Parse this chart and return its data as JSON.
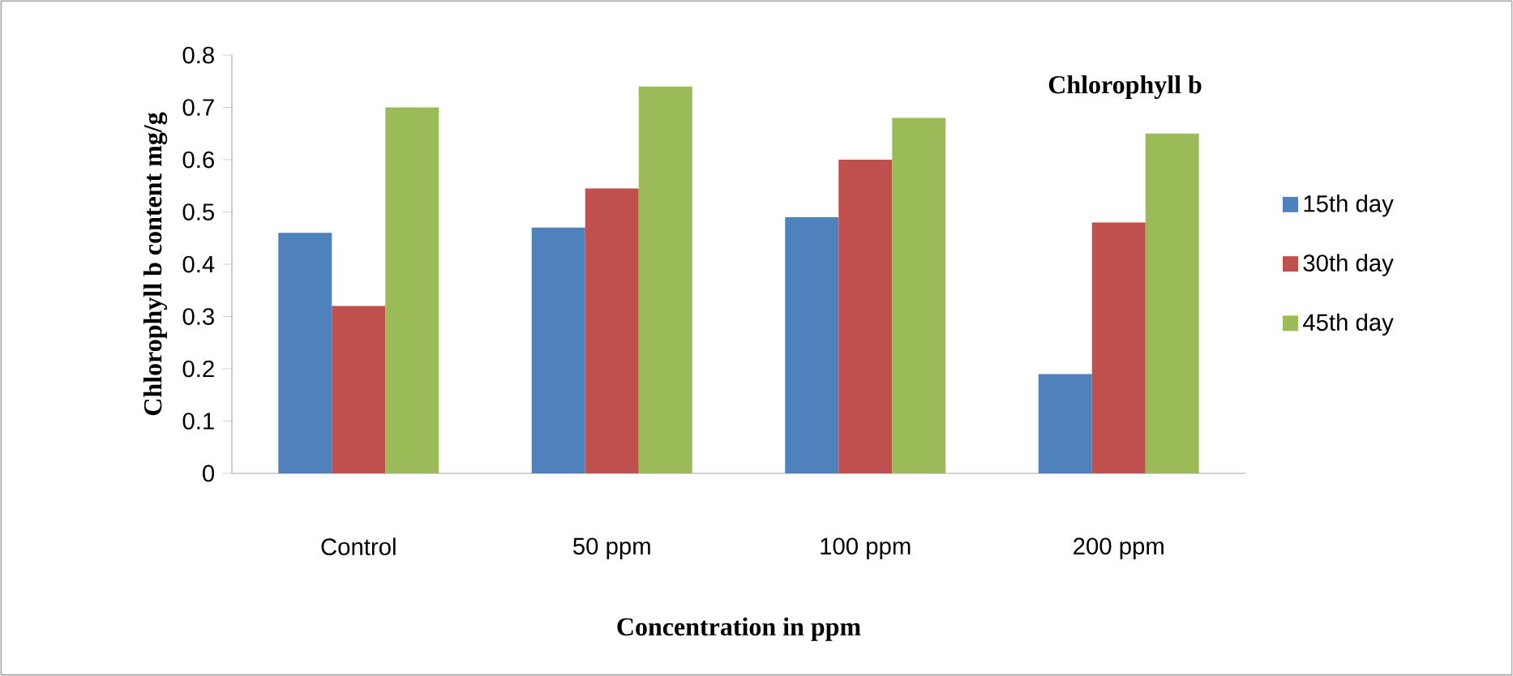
{
  "chart_data": {
    "type": "bar",
    "xlabel": "Concentration in ppm",
    "ylabel": "Chlorophyll b content mg/g",
    "annotations": [
      "Chlorophyll b"
    ],
    "categories": [
      "Control",
      "50 ppm",
      "100 ppm",
      "200 ppm"
    ],
    "series": [
      {
        "name": "15th day",
        "color": "#4f81bd",
        "values": [
          0.46,
          0.47,
          0.49,
          0.19
        ]
      },
      {
        "name": "30th day",
        "color": "#c0504d",
        "values": [
          0.32,
          0.545,
          0.6,
          0.48
        ]
      },
      {
        "name": "45th day",
        "color": "#9bbb59",
        "values": [
          0.7,
          0.74,
          0.68,
          0.65
        ]
      }
    ],
    "ylim": [
      0,
      0.8
    ],
    "yticks": [
      0,
      0.1,
      0.2,
      0.3,
      0.4,
      0.5,
      0.6,
      0.7,
      0.8
    ],
    "grid": false,
    "legend": "right"
  }
}
